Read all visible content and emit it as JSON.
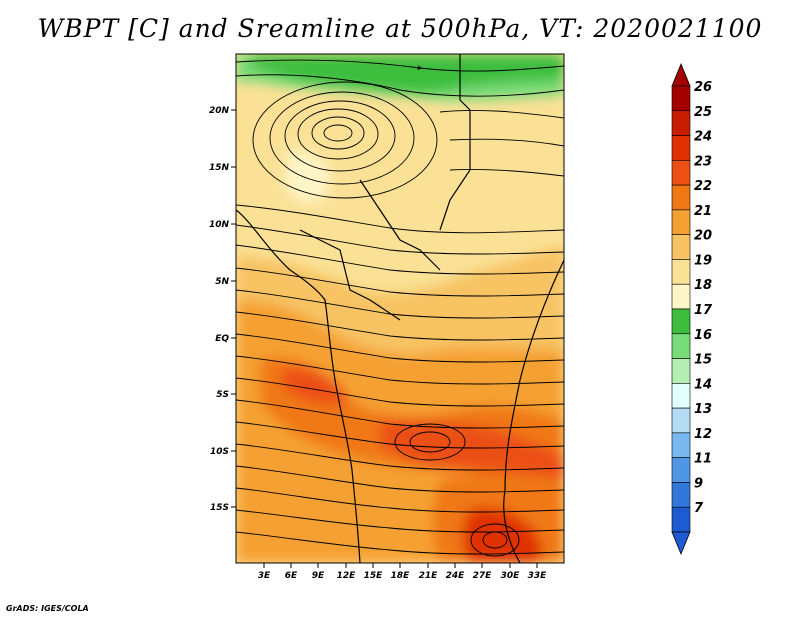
{
  "title": "WBPT [C] and Sreamline at 500hPa, VT: 2020021100",
  "credit": "GrADS: IGES/COLA",
  "map": {
    "lat_labels": [
      "20N",
      "15N",
      "10N",
      "5N",
      "EQ",
      "5S",
      "10S",
      "15S"
    ],
    "lon_labels": [
      "3E",
      "6E",
      "9E",
      "12E",
      "15E",
      "18E",
      "21E",
      "24E",
      "27E",
      "30E",
      "33E"
    ]
  },
  "colorbar": {
    "levels": [
      "26",
      "25",
      "24",
      "23",
      "22",
      "21",
      "20",
      "19",
      "18",
      "17",
      "16",
      "15",
      "14",
      "13",
      "12",
      "11",
      "9",
      "7"
    ],
    "colors": [
      "#a50000",
      "#c81e00",
      "#e03200",
      "#ec5014",
      "#f07814",
      "#f5a032",
      "#f7c364",
      "#fae196",
      "#fff5c8",
      "#3cbe3c",
      "#78dc78",
      "#b4f0b4",
      "#e1ffff",
      "#b4dcf5",
      "#78b9f0",
      "#5096e6",
      "#3278dc",
      "#1e5ad2"
    ]
  }
}
